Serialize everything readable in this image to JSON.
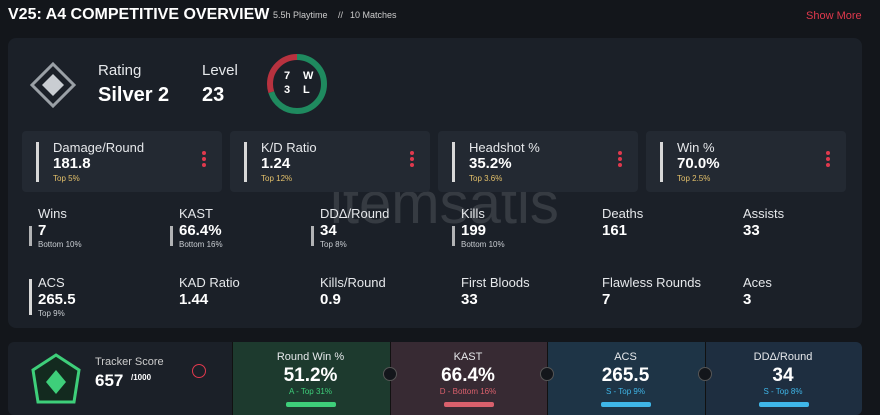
{
  "header": {
    "title": "V25: A4 COMPETITIVE OVERVIEW",
    "playtime": "5.5h Playtime",
    "separator": "//",
    "matches": "10 Matches",
    "show_more": "Show More"
  },
  "watermark": "itemsatis",
  "overview": {
    "rating_label": "Rating",
    "rating": "Silver 2",
    "level_label": "Level",
    "level": "23",
    "wins": 7,
    "win_letter": "W",
    "losses": 3,
    "loss_letter": "L",
    "win_color": "#1f8a5f",
    "loss_color": "#b8323f"
  },
  "top_stats": [
    {
      "label": "Damage/Round",
      "value": "181.8",
      "rank": "Top 5%"
    },
    {
      "label": "K/D Ratio",
      "value": "1.24",
      "rank": "Top 12%"
    },
    {
      "label": "Headshot %",
      "value": "35.2%",
      "rank": "Top 3.6%"
    },
    {
      "label": "Win %",
      "value": "70.0%",
      "rank": "Top 2.5%"
    }
  ],
  "stats": [
    [
      {
        "label": "Wins",
        "value": "7",
        "rank": "Bottom 10%"
      },
      {
        "label": "KAST",
        "value": "66.4%",
        "rank": "Bottom 16%"
      },
      {
        "label": "DDΔ/Round",
        "value": "34",
        "rank": "Top 8%"
      },
      {
        "label": "Kills",
        "value": "199",
        "rank": "Bottom 10%"
      },
      {
        "label": "Deaths",
        "value": "161"
      },
      {
        "label": "Assists",
        "value": "33"
      }
    ],
    [
      {
        "label": "ACS",
        "value": "265.5",
        "rank": "Top 9%"
      },
      {
        "label": "KAD Ratio",
        "value": "1.44"
      },
      {
        "label": "Kills/Round",
        "value": "0.9"
      },
      {
        "label": "First Bloods",
        "value": "33"
      },
      {
        "label": "Flawless Rounds",
        "value": "7"
      },
      {
        "label": "Aces",
        "value": "3"
      }
    ]
  ],
  "tracker": {
    "label": "Tracker Score",
    "score": "657",
    "max": "/1000"
  },
  "tracker_stats": [
    {
      "label": "Round Win %",
      "value": "51.2%",
      "rank": "A - Top 31%",
      "color": "#3ecf7a",
      "bg": "#1d3a2e"
    },
    {
      "label": "KAST",
      "value": "66.4%",
      "rank": "D - Bottom 16%",
      "color": "#d9606c",
      "bg": "#372a33"
    },
    {
      "label": "ACS",
      "value": "265.5",
      "rank": "S - Top 9%",
      "color": "#3fb6e8",
      "bg": "#1e3446"
    },
    {
      "label": "DDΔ/Round",
      "value": "34",
      "rank": "S - Top 8%",
      "color": "#3fb6e8",
      "bg": "#1e2e40"
    }
  ]
}
